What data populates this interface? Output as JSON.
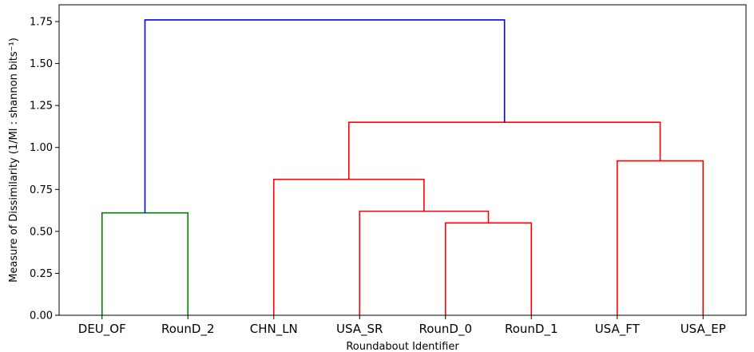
{
  "chart_data": {
    "type": "dendrogram",
    "xlabel": "Roundabout Identifier",
    "ylabel": "Measure of Dissimilarity (1/MI : shannon bits⁻¹)",
    "ylim": [
      0,
      1.85
    ],
    "yticks": [
      "0.00",
      "0.25",
      "0.50",
      "0.75",
      "1.00",
      "1.25",
      "1.50",
      "1.75"
    ],
    "leaves": [
      "DEU_OF",
      "RounD_2",
      "CHN_LN",
      "USA_SR",
      "RounD_0",
      "RounD_1",
      "USA_FT",
      "USA_EP"
    ],
    "merges": [
      {
        "left": "RounD_0",
        "right": "RounD_1",
        "height": 0.55,
        "color": "#ff0000"
      },
      {
        "left": "USA_SR",
        "right": "(RounD_0, RounD_1)",
        "height": 0.62,
        "color": "#ff0000"
      },
      {
        "left": "DEU_OF",
        "right": "RounD_2",
        "height": 0.61,
        "color": "#008000"
      },
      {
        "left": "CHN_LN",
        "right": "(USA_SR, RounD_0, RounD_1)",
        "height": 0.81,
        "color": "#ff0000"
      },
      {
        "left": "USA_FT",
        "right": "USA_EP",
        "height": 0.92,
        "color": "#ff0000"
      },
      {
        "left": "(CHN_LN, USA_SR, RounD_0, RounD_1)",
        "right": "(USA_FT, USA_EP)",
        "height": 1.15,
        "color": "#ff0000"
      },
      {
        "left": "(DEU_OF, RounD_2)",
        "right": "(CHN_LN, USA_SR, RounD_0, RounD_1, USA_FT, USA_EP)",
        "height": 1.76,
        "color": "#0000ff"
      }
    ],
    "grid": false,
    "legend": "none"
  }
}
